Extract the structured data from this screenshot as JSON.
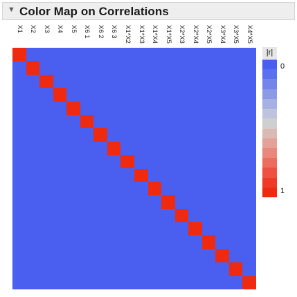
{
  "panel": {
    "disclosure_icon": "triangle-down-icon",
    "title": "Color Map on Correlations"
  },
  "columns": [
    "X1",
    "X2",
    "X3",
    "X4",
    "X5",
    "X6 1",
    "X6 2",
    "X6 3",
    "X1*X2",
    "X1*X3",
    "X1*X4",
    "X1*X5",
    "X2*X3",
    "X2*X4",
    "X2*X5",
    "X3*X4",
    "X3*X5",
    "X4*X5"
  ],
  "chart_data": {
    "type": "heatmap",
    "variables": [
      "X1",
      "X2",
      "X3",
      "X4",
      "X5",
      "X6 1",
      "X6 2",
      "X6 3",
      "X1*X2",
      "X1*X3",
      "X1*X4",
      "X1*X5",
      "X2*X3",
      "X2*X4",
      "X2*X5",
      "X3*X4",
      "X3*X5",
      "X4*X5"
    ],
    "cells": "abs correlation: 1 on diagonal, 0 elsewhere",
    "diagonal_value": 1,
    "off_diagonal_value": 0,
    "low_color": "#4a5ef0",
    "high_color": "#ee2a10"
  },
  "legend": {
    "header": "|r|",
    "min_label": "0",
    "max_label": "1",
    "swatches": [
      "#4a5ef0",
      "#5b70ee",
      "#7385ea",
      "#8c9ae6",
      "#a6b0e2",
      "#bec4dd",
      "#d0cfcf",
      "#dcbab4",
      "#e3a198",
      "#e8877c",
      "#ec6c5f",
      "#ee5142",
      "#ef3a25",
      "#ee2a10"
    ]
  }
}
